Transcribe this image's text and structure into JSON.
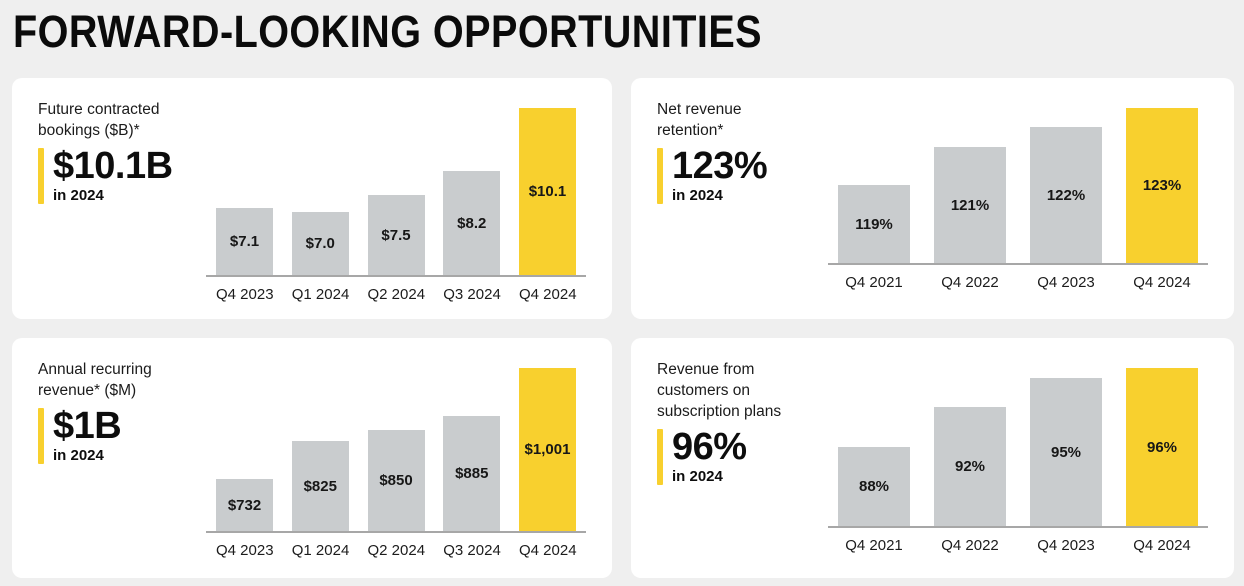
{
  "page": {
    "title": "FORWARD-LOOKING OPPORTUNITIES"
  },
  "colors": {
    "page_background": "#EFEFEF",
    "card_background": "#FFFFFF",
    "highlight_yellow": "#F8D02E",
    "bar_gray": "#C9CCCE",
    "axis_line_gray": "#A7A7A7",
    "text_black": "#111111"
  },
  "chart_data": [
    {
      "type": "bar",
      "panel_title": "Future contracted\nbookings ($B)*",
      "stat_value": "$10.1B",
      "stat_caption": "in 2024",
      "categories": [
        "Q4 2023",
        "Q1 2024",
        "Q2 2024",
        "Q3 2024",
        "Q4 2024"
      ],
      "values": [
        7.1,
        7.0,
        7.5,
        8.2,
        10.1
      ],
      "bar_labels": [
        "$7.1",
        "$7.0",
        "$7.5",
        "$8.2",
        "$10.1"
      ],
      "highlight_index": 4,
      "highlight_category": "Q4 2024",
      "ylim": [
        5.1,
        10.1
      ],
      "grid": false,
      "legend": false,
      "value_labels_position": "inside-center"
    },
    {
      "type": "bar",
      "panel_title": "Net revenue\nretention*",
      "stat_value": "123%",
      "stat_caption": "in 2024",
      "categories": [
        "Q4 2021",
        "Q4 2022",
        "Q4 2023",
        "Q4 2024"
      ],
      "values": [
        119,
        121,
        122,
        123
      ],
      "bar_labels": [
        "119%",
        "121%",
        "122%",
        "123%"
      ],
      "highlight_index": 3,
      "highlight_category": "Q4 2024",
      "ylim": [
        115,
        123
      ],
      "grid": false,
      "legend": false,
      "value_labels_position": "inside-center"
    },
    {
      "type": "bar",
      "panel_title": "Annual recurring\nrevenue* ($M)",
      "stat_value": "$1B",
      "stat_caption": "in 2024",
      "categories": [
        "Q4 2023",
        "Q1 2024",
        "Q2 2024",
        "Q3 2024",
        "Q4 2024"
      ],
      "values": [
        732,
        825,
        850,
        885,
        1001
      ],
      "bar_labels": [
        "$732",
        "$825",
        "$850",
        "$885",
        "$1,001"
      ],
      "highlight_index": 4,
      "highlight_category": "Q4 2024",
      "ylim": [
        606,
        1001
      ],
      "grid": false,
      "legend": false,
      "value_labels_position": "inside-center"
    },
    {
      "type": "bar",
      "panel_title": "Revenue from\ncustomers on\nsubscription plans",
      "stat_value": "96%",
      "stat_caption": "in 2024",
      "categories": [
        "Q4 2021",
        "Q4 2022",
        "Q4 2023",
        "Q4 2024"
      ],
      "values": [
        88,
        92,
        95,
        96
      ],
      "bar_labels": [
        "88%",
        "92%",
        "95%",
        "96%"
      ],
      "highlight_index": 3,
      "highlight_category": "Q4 2024",
      "ylim": [
        80,
        96
      ],
      "grid": false,
      "legend": false,
      "value_labels_position": "inside-center"
    }
  ]
}
